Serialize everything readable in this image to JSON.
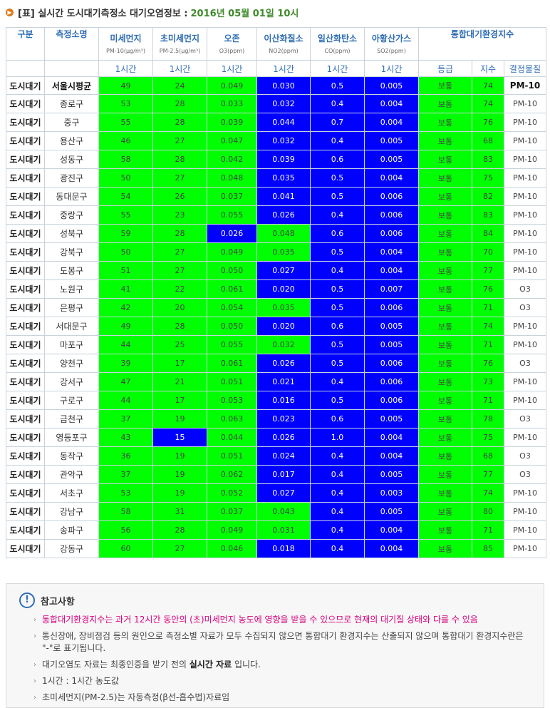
{
  "title": {
    "prefix": "[표] 실시간 도시대기측정소 대기오염정보 :",
    "date": "2016년 05월 01일 10시"
  },
  "colors": {
    "good_green": "#00ff00",
    "very_good_blue": "#0000ff",
    "header_text": "#2f6db5",
    "date_text": "#3f8a2b",
    "note_highlight": "#d6007e"
  },
  "headers": {
    "gubun": "구분",
    "station": "측정소명",
    "pm10": "미세먼지",
    "pm10_unit": "PM-10(μg/m³)",
    "pm25": "초미세먼지",
    "pm25_unit": "PM-2.5(μg/m³)",
    "o3": "오존",
    "o3_unit": "O3(ppm)",
    "no2": "이산화질소",
    "no2_unit": "NO2(ppm)",
    "co": "일산화탄소",
    "co_unit": "CO(ppm)",
    "so2": "아황산가스",
    "so2_unit": "SO2(ppm)",
    "cai": "통합대기환경지수",
    "one_hour": "1시간",
    "grade": "등급",
    "index": "지수",
    "determinant": "결정물질"
  },
  "rows": [
    {
      "gubun": "도시대기",
      "station": "서울시평균",
      "pm10": "49",
      "pm25": "24",
      "o3": "0.049",
      "no2": "0.030",
      "co": "0.5",
      "so2": "0.005",
      "grade": "보통",
      "index": "74",
      "det": "PM-10",
      "c": [
        "g",
        "g",
        "g",
        "b",
        "b",
        "b"
      ]
    },
    {
      "gubun": "도시대기",
      "station": "종로구",
      "pm10": "53",
      "pm25": "28",
      "o3": "0.033",
      "no2": "0.032",
      "co": "0.4",
      "so2": "0.004",
      "grade": "보통",
      "index": "74",
      "det": "PM-10",
      "c": [
        "g",
        "g",
        "g",
        "b",
        "b",
        "b"
      ]
    },
    {
      "gubun": "도시대기",
      "station": "중구",
      "pm10": "55",
      "pm25": "28",
      "o3": "0.039",
      "no2": "0.044",
      "co": "0.7",
      "so2": "0.004",
      "grade": "보통",
      "index": "76",
      "det": "PM-10",
      "c": [
        "g",
        "g",
        "g",
        "b",
        "b",
        "b"
      ]
    },
    {
      "gubun": "도시대기",
      "station": "용산구",
      "pm10": "46",
      "pm25": "27",
      "o3": "0.047",
      "no2": "0.032",
      "co": "0.4",
      "so2": "0.005",
      "grade": "보통",
      "index": "68",
      "det": "PM-10",
      "c": [
        "g",
        "g",
        "g",
        "b",
        "b",
        "b"
      ]
    },
    {
      "gubun": "도시대기",
      "station": "성동구",
      "pm10": "58",
      "pm25": "28",
      "o3": "0.042",
      "no2": "0.039",
      "co": "0.6",
      "so2": "0.005",
      "grade": "보통",
      "index": "83",
      "det": "PM-10",
      "c": [
        "g",
        "g",
        "g",
        "b",
        "b",
        "b"
      ]
    },
    {
      "gubun": "도시대기",
      "station": "광진구",
      "pm10": "50",
      "pm25": "27",
      "o3": "0.048",
      "no2": "0.035",
      "co": "0.5",
      "so2": "0.004",
      "grade": "보통",
      "index": "75",
      "det": "PM-10",
      "c": [
        "g",
        "g",
        "g",
        "b",
        "b",
        "b"
      ]
    },
    {
      "gubun": "도시대기",
      "station": "동대문구",
      "pm10": "54",
      "pm25": "26",
      "o3": "0.037",
      "no2": "0.041",
      "co": "0.5",
      "so2": "0.006",
      "grade": "보통",
      "index": "82",
      "det": "PM-10",
      "c": [
        "g",
        "g",
        "g",
        "b",
        "b",
        "b"
      ]
    },
    {
      "gubun": "도시대기",
      "station": "중랑구",
      "pm10": "55",
      "pm25": "23",
      "o3": "0.055",
      "no2": "0.026",
      "co": "0.4",
      "so2": "0.006",
      "grade": "보통",
      "index": "83",
      "det": "PM-10",
      "c": [
        "g",
        "g",
        "g",
        "b",
        "b",
        "b"
      ]
    },
    {
      "gubun": "도시대기",
      "station": "성북구",
      "pm10": "59",
      "pm25": "28",
      "o3": "0.026",
      "no2": "0.048",
      "co": "0.6",
      "so2": "0.006",
      "grade": "보통",
      "index": "84",
      "det": "PM-10",
      "c": [
        "g",
        "g",
        "b",
        "g",
        "b",
        "b"
      ]
    },
    {
      "gubun": "도시대기",
      "station": "강북구",
      "pm10": "50",
      "pm25": "27",
      "o3": "0.049",
      "no2": "0.035",
      "co": "0.5",
      "so2": "0.004",
      "grade": "보통",
      "index": "70",
      "det": "PM-10",
      "c": [
        "g",
        "g",
        "g",
        "g",
        "b",
        "b"
      ]
    },
    {
      "gubun": "도시대기",
      "station": "도봉구",
      "pm10": "51",
      "pm25": "27",
      "o3": "0.050",
      "no2": "0.027",
      "co": "0.4",
      "so2": "0.004",
      "grade": "보통",
      "index": "77",
      "det": "PM-10",
      "c": [
        "g",
        "g",
        "g",
        "b",
        "b",
        "b"
      ]
    },
    {
      "gubun": "도시대기",
      "station": "노원구",
      "pm10": "41",
      "pm25": "22",
      "o3": "0.061",
      "no2": "0.020",
      "co": "0.5",
      "so2": "0.007",
      "grade": "보통",
      "index": "76",
      "det": "O3",
      "c": [
        "g",
        "g",
        "g",
        "b",
        "b",
        "b"
      ]
    },
    {
      "gubun": "도시대기",
      "station": "은평구",
      "pm10": "42",
      "pm25": "20",
      "o3": "0.054",
      "no2": "0.035",
      "co": "0.5",
      "so2": "0.006",
      "grade": "보통",
      "index": "71",
      "det": "O3",
      "c": [
        "g",
        "g",
        "g",
        "g",
        "b",
        "b"
      ]
    },
    {
      "gubun": "도시대기",
      "station": "서대문구",
      "pm10": "49",
      "pm25": "28",
      "o3": "0.050",
      "no2": "0.020",
      "co": "0.6",
      "so2": "0.005",
      "grade": "보통",
      "index": "74",
      "det": "PM-10",
      "c": [
        "g",
        "g",
        "g",
        "b",
        "b",
        "b"
      ]
    },
    {
      "gubun": "도시대기",
      "station": "마포구",
      "pm10": "44",
      "pm25": "25",
      "o3": "0.055",
      "no2": "0.032",
      "co": "0.5",
      "so2": "0.005",
      "grade": "보통",
      "index": "71",
      "det": "PM-10",
      "c": [
        "g",
        "g",
        "g",
        "g",
        "b",
        "b"
      ]
    },
    {
      "gubun": "도시대기",
      "station": "양천구",
      "pm10": "39",
      "pm25": "17",
      "o3": "0.061",
      "no2": "0.026",
      "co": "0.5",
      "so2": "0.006",
      "grade": "보통",
      "index": "76",
      "det": "O3",
      "c": [
        "g",
        "g",
        "g",
        "b",
        "b",
        "b"
      ]
    },
    {
      "gubun": "도시대기",
      "station": "강서구",
      "pm10": "47",
      "pm25": "21",
      "o3": "0.051",
      "no2": "0.021",
      "co": "0.4",
      "so2": "0.006",
      "grade": "보통",
      "index": "73",
      "det": "PM-10",
      "c": [
        "g",
        "g",
        "g",
        "b",
        "b",
        "b"
      ]
    },
    {
      "gubun": "도시대기",
      "station": "구로구",
      "pm10": "44",
      "pm25": "17",
      "o3": "0.053",
      "no2": "0.016",
      "co": "0.5",
      "so2": "0.006",
      "grade": "보통",
      "index": "71",
      "det": "PM-10",
      "c": [
        "g",
        "g",
        "g",
        "b",
        "b",
        "b"
      ]
    },
    {
      "gubun": "도시대기",
      "station": "금천구",
      "pm10": "37",
      "pm25": "19",
      "o3": "0.063",
      "no2": "0.023",
      "co": "0.6",
      "so2": "0.005",
      "grade": "보통",
      "index": "78",
      "det": "O3",
      "c": [
        "g",
        "g",
        "g",
        "b",
        "b",
        "b"
      ]
    },
    {
      "gubun": "도시대기",
      "station": "영등포구",
      "pm10": "43",
      "pm25": "15",
      "o3": "0.044",
      "no2": "0.026",
      "co": "1.0",
      "so2": "0.004",
      "grade": "보통",
      "index": "75",
      "det": "PM-10",
      "c": [
        "g",
        "b",
        "g",
        "b",
        "b",
        "b"
      ]
    },
    {
      "gubun": "도시대기",
      "station": "동작구",
      "pm10": "36",
      "pm25": "19",
      "o3": "0.051",
      "no2": "0.024",
      "co": "0.4",
      "so2": "0.004",
      "grade": "보통",
      "index": "68",
      "det": "O3",
      "c": [
        "g",
        "g",
        "g",
        "b",
        "b",
        "b"
      ]
    },
    {
      "gubun": "도시대기",
      "station": "관악구",
      "pm10": "37",
      "pm25": "19",
      "o3": "0.062",
      "no2": "0.017",
      "co": "0.4",
      "so2": "0.005",
      "grade": "보통",
      "index": "77",
      "det": "O3",
      "c": [
        "g",
        "g",
        "g",
        "b",
        "b",
        "b"
      ]
    },
    {
      "gubun": "도시대기",
      "station": "서초구",
      "pm10": "53",
      "pm25": "19",
      "o3": "0.052",
      "no2": "0.027",
      "co": "0.4",
      "so2": "0.003",
      "grade": "보통",
      "index": "74",
      "det": "PM-10",
      "c": [
        "g",
        "g",
        "g",
        "b",
        "b",
        "b"
      ]
    },
    {
      "gubun": "도시대기",
      "station": "강남구",
      "pm10": "58",
      "pm25": "31",
      "o3": "0.037",
      "no2": "0.043",
      "co": "0.4",
      "so2": "0.005",
      "grade": "보통",
      "index": "80",
      "det": "PM-10",
      "c": [
        "g",
        "g",
        "g",
        "g",
        "b",
        "b"
      ]
    },
    {
      "gubun": "도시대기",
      "station": "송파구",
      "pm10": "56",
      "pm25": "28",
      "o3": "0.049",
      "no2": "0.031",
      "co": "0.4",
      "so2": "0.004",
      "grade": "보통",
      "index": "71",
      "det": "PM-10",
      "c": [
        "g",
        "g",
        "g",
        "g",
        "b",
        "b"
      ]
    },
    {
      "gubun": "도시대기",
      "station": "강동구",
      "pm10": "60",
      "pm25": "27",
      "o3": "0.046",
      "no2": "0.018",
      "co": "0.4",
      "so2": "0.004",
      "grade": "보통",
      "index": "85",
      "det": "PM-10",
      "c": [
        "g",
        "g",
        "g",
        "b",
        "b",
        "b"
      ]
    }
  ],
  "notes": {
    "heading": "참고사항",
    "items": [
      {
        "text": "통합대기환경지수는 과거 12시간 동안의 (초)미세먼지 농도에 영향을 받을 수 있으므로 현재의 대기질 상태와 다를 수 있음",
        "highlight": true
      },
      {
        "text": "통신장애, 장비점검 등의 원인으로 측정소별 자료가 모두 수집되지 않으면 통합대기 환경지수는 산출되지 않으며 통합대기 환경지수란은 \"-\"로 표기됩니다.",
        "highlight": false
      },
      {
        "pre": "대기오염도 자료는 최종인증을 받기 전의 ",
        "bold": "실시간 자료",
        "post": " 입니다.",
        "highlight": false
      },
      {
        "text": "1시간 : 1시간 농도값",
        "highlight": false
      },
      {
        "text": "초미세먼지(PM-2.5)는 자동측정(β선-흡수법)자료임",
        "highlight": false
      }
    ]
  }
}
